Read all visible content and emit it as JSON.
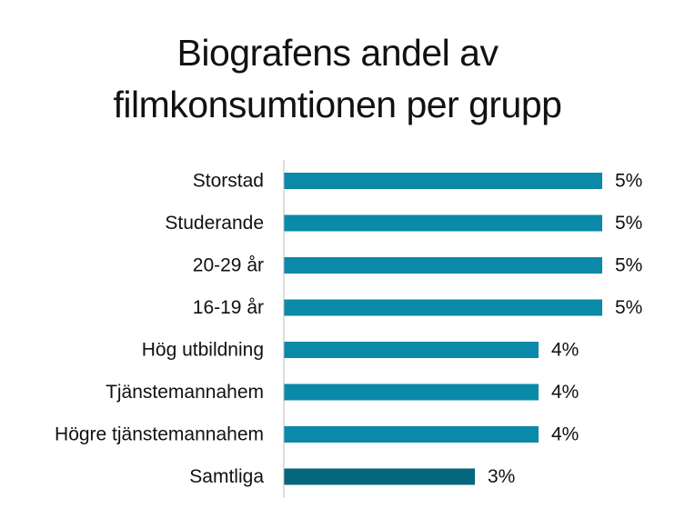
{
  "title_lines": [
    "Biografens andel av",
    "filmkonsumtionen per grupp"
  ],
  "colors": {
    "bar": "#0a89a8",
    "highlight_bar": "#06667e",
    "axis": "#bbbbbb",
    "text": "#111111"
  },
  "chart_data": {
    "type": "bar",
    "orientation": "horizontal",
    "title": "Biografens andel av filmkonsumtionen per grupp",
    "xlabel": "",
    "ylabel": "",
    "categories": [
      "Storstad",
      "Studerande",
      "20-29 år",
      "16-19 år",
      "Hög utbildning",
      "Tjänstemannahem",
      "Högre tjänstemannahem",
      "Samtliga"
    ],
    "values": [
      5,
      5,
      5,
      5,
      4,
      4,
      4,
      3
    ],
    "value_labels": [
      "5%",
      "5%",
      "5%",
      "5%",
      "4%",
      "4%",
      "4%",
      "3%"
    ],
    "highlight_category": "Samtliga",
    "xlim": [
      0,
      5
    ],
    "grid": false,
    "legend": "none"
  }
}
